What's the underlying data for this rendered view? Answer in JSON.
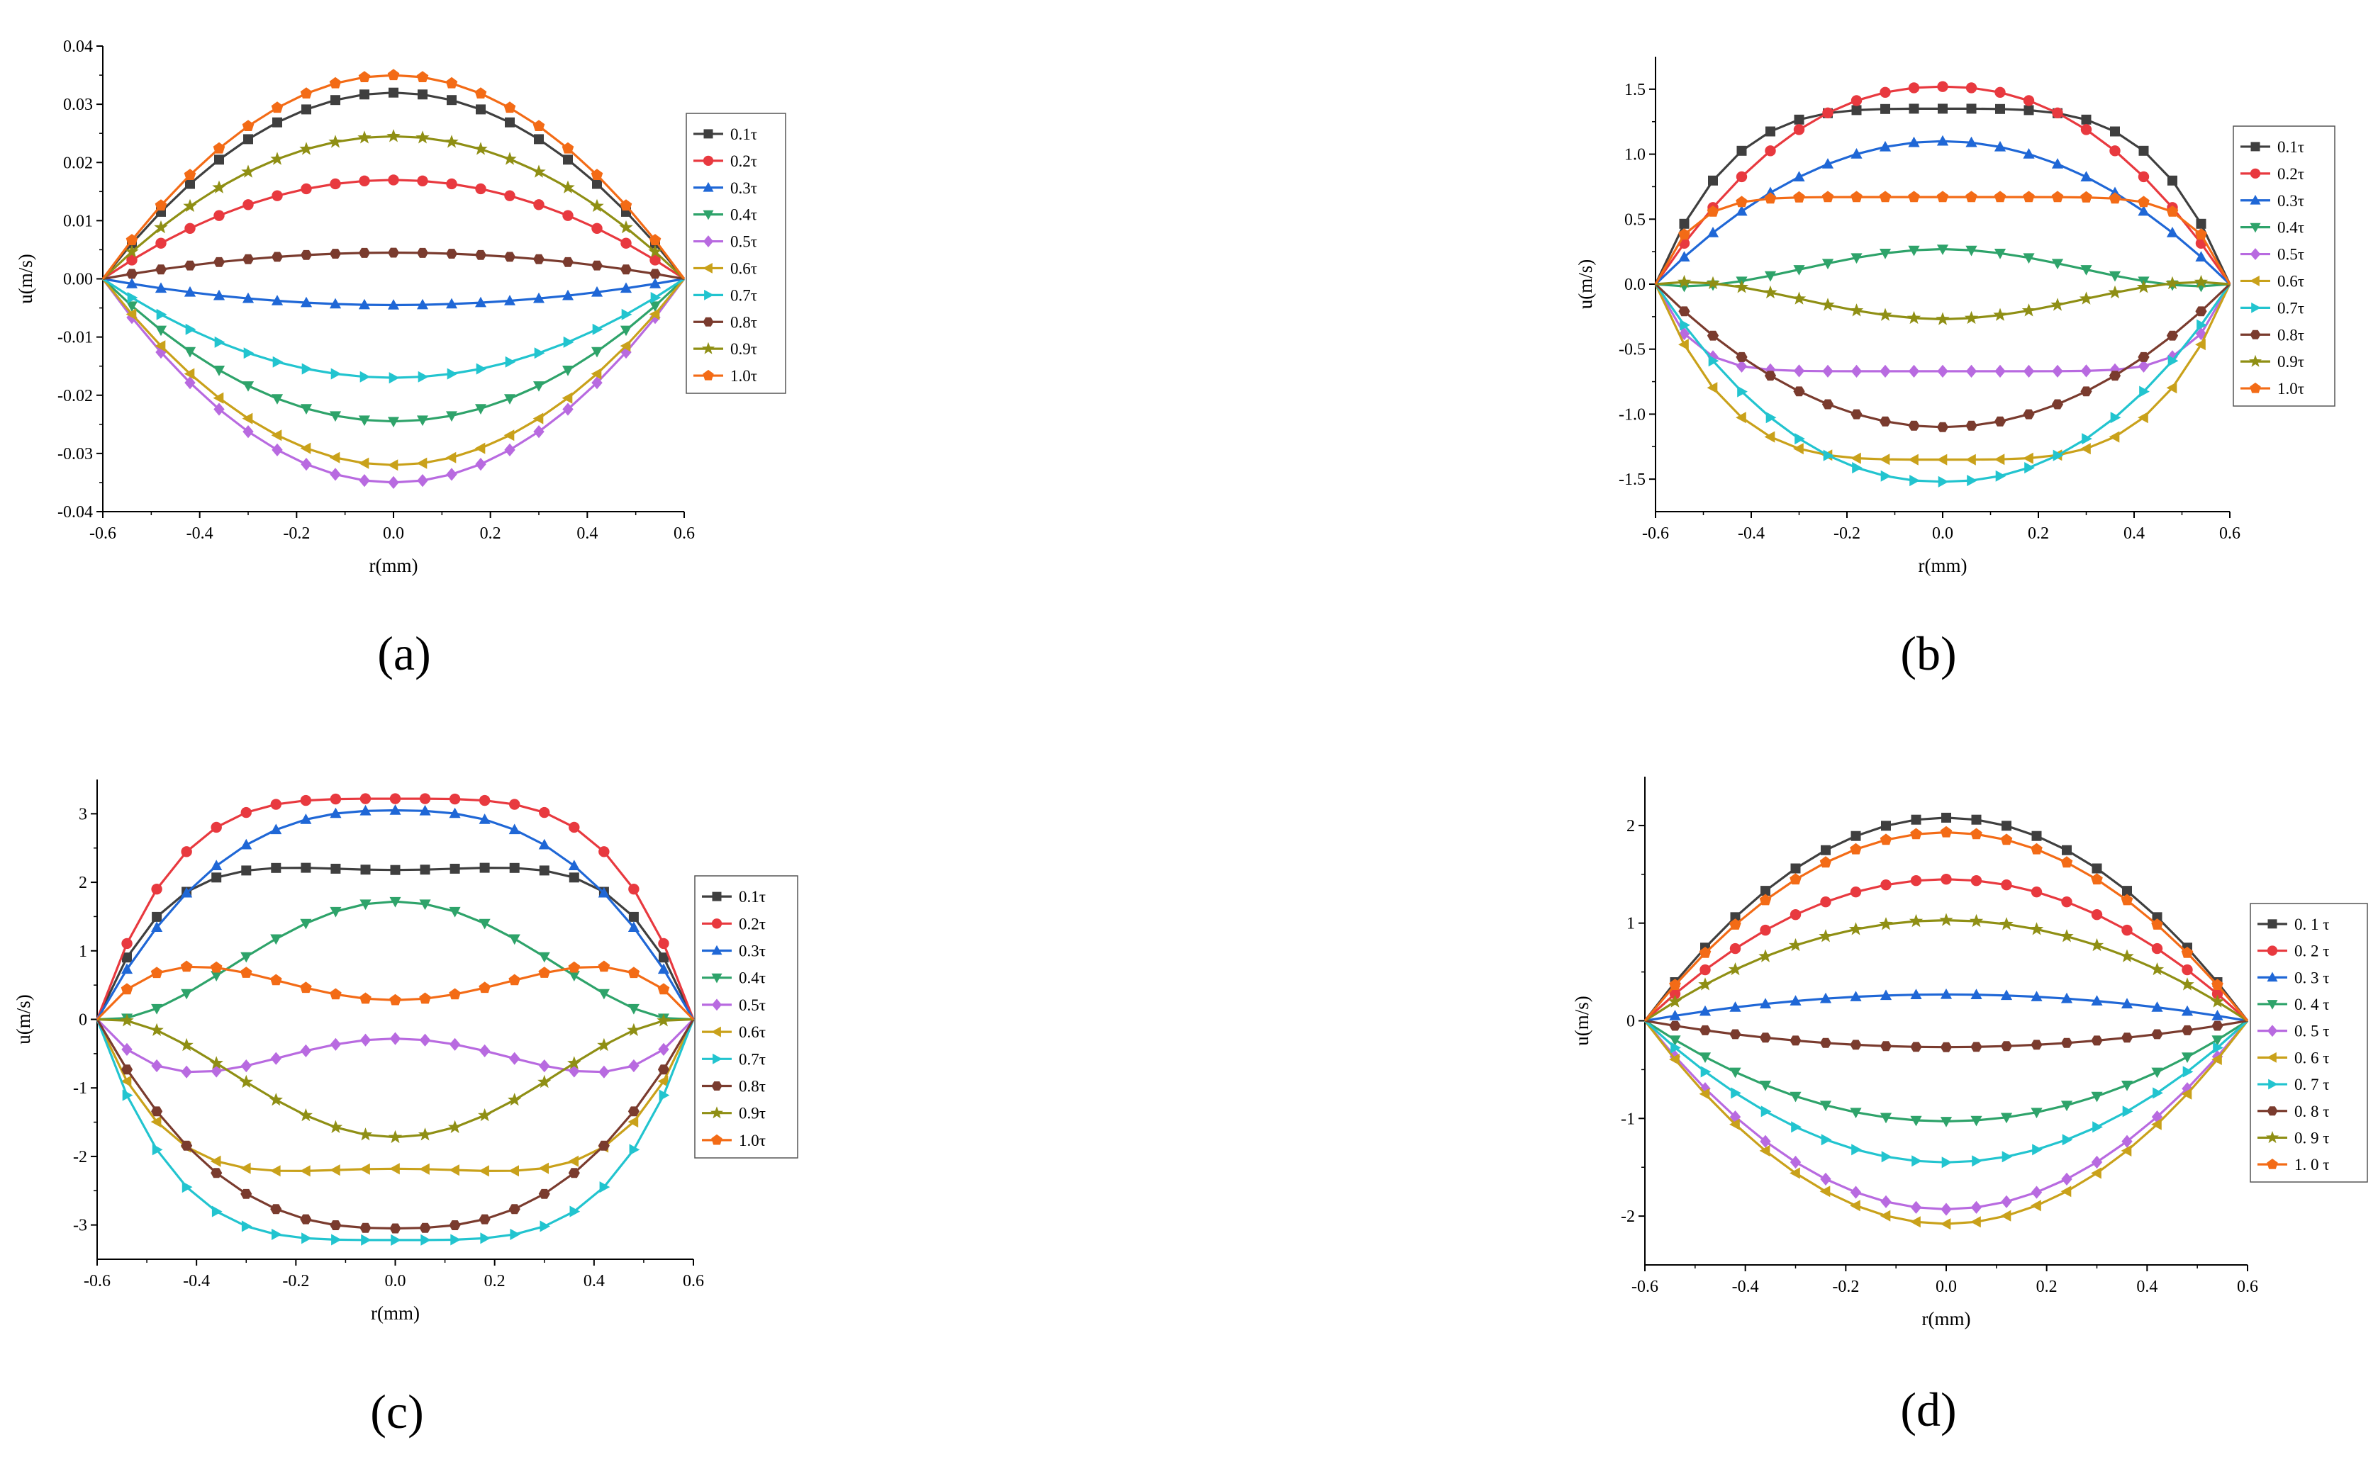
{
  "figure": {
    "panels": [
      "(a)",
      "(b)",
      "(c)",
      "(d)"
    ]
  },
  "chart_data": [
    {
      "panel": "a",
      "panel_label": "(a)",
      "type": "line",
      "xlabel": "r(mm)",
      "ylabel": "u(m/s)",
      "xlim": [
        -0.6,
        0.6
      ],
      "ylim": [
        -0.04,
        0.04
      ],
      "xticks": [
        "-0.6",
        "-0.4",
        "-0.2",
        "0.0",
        "0.2",
        "0.4",
        "0.6"
      ],
      "yticks": [
        "-0.04",
        "-0.03",
        "-0.02",
        "-0.01",
        "0.00",
        "0.01",
        "0.02",
        "0.03",
        "0.04"
      ],
      "ytick_values": [
        -0.04,
        -0.03,
        -0.02,
        -0.01,
        0,
        0.01,
        0.02,
        0.03,
        0.04
      ],
      "legend": "right",
      "series": [
        {
          "name": "0.1τ",
          "color": "#3f3f3f",
          "marker": "square",
          "model": "parabola",
          "amp": 0.032
        },
        {
          "name": "0.2τ",
          "color": "#e8393f",
          "marker": "circle",
          "model": "parabola",
          "amp": 0.017
        },
        {
          "name": "0.3τ",
          "color": "#1f67d6",
          "marker": "triangle-up",
          "model": "parabola",
          "amp": -0.0045
        },
        {
          "name": "0.4τ",
          "color": "#2ea36a",
          "marker": "triangle-down",
          "model": "parabola",
          "amp": -0.0245
        },
        {
          "name": "0.5τ",
          "color": "#b86ae0",
          "marker": "diamond",
          "model": "parabola",
          "amp": -0.035
        },
        {
          "name": "0.6τ",
          "color": "#c9a11a",
          "marker": "triangle-left",
          "model": "parabola",
          "amp": -0.032
        },
        {
          "name": "0.7τ",
          "color": "#22c4cf",
          "marker": "triangle-right",
          "model": "parabola",
          "amp": -0.017
        },
        {
          "name": "0.8τ",
          "color": "#7a3b2e",
          "marker": "hexagon",
          "model": "parabola",
          "amp": 0.0045
        },
        {
          "name": "0.9τ",
          "color": "#8f8f14",
          "marker": "star",
          "model": "parabola",
          "amp": 0.0245
        },
        {
          "name": "1.0τ",
          "color": "#f36b16",
          "marker": "pentagon",
          "model": "parabola",
          "amp": 0.035
        }
      ]
    },
    {
      "panel": "b",
      "panel_label": "(b)",
      "type": "line",
      "xlabel": "r(mm)",
      "ylabel": "u(m/s)",
      "xlim": [
        -0.6,
        0.6
      ],
      "ylim": [
        -1.75,
        1.75
      ],
      "xticks": [
        "-0.6",
        "-0.4",
        "-0.2",
        "0.0",
        "0.2",
        "0.4",
        "0.6"
      ],
      "yticks": [
        "-1.5",
        "-1.0",
        "-0.5",
        "0.0",
        "0.5",
        "1.0",
        "1.5"
      ],
      "ytick_values": [
        -1.5,
        -1.0,
        -0.5,
        0,
        0.5,
        1.0,
        1.5
      ],
      "legend": "right",
      "series": [
        {
          "name": "0.1τ",
          "color": "#3f3f3f",
          "marker": "square",
          "model": "womersley",
          "a": 1.35,
          "b": 0,
          "n": 4
        },
        {
          "name": "0.2τ",
          "color": "#e8393f",
          "marker": "circle",
          "model": "womersley",
          "a": 1.52,
          "b": 0,
          "n": 2.2
        },
        {
          "name": "0.3τ",
          "color": "#1f67d6",
          "marker": "triangle-up",
          "model": "womersley",
          "a": 1.1,
          "b": 0,
          "n": 2.0
        },
        {
          "name": "0.4τ",
          "color": "#2ea36a",
          "marker": "triangle-down",
          "model": "womersley",
          "a": 0.27,
          "b": -0.45,
          "n": 1.8
        },
        {
          "name": "0.5τ",
          "color": "#b86ae0",
          "marker": "diamond",
          "model": "womersley",
          "a": -0.67,
          "b": 0,
          "n": 8
        },
        {
          "name": "0.6τ",
          "color": "#c9a11a",
          "marker": "triangle-left",
          "model": "womersley",
          "a": -1.35,
          "b": 0,
          "n": 4
        },
        {
          "name": "0.7τ",
          "color": "#22c4cf",
          "marker": "triangle-right",
          "model": "womersley",
          "a": -1.52,
          "b": 0,
          "n": 2.2
        },
        {
          "name": "0.8τ",
          "color": "#7a3b2e",
          "marker": "hexagon",
          "model": "womersley",
          "a": -1.1,
          "b": 0,
          "n": 2.0
        },
        {
          "name": "0.9τ",
          "color": "#8f8f14",
          "marker": "star",
          "model": "womersley",
          "a": -0.27,
          "b": 0.45,
          "n": 1.8
        },
        {
          "name": "1.0τ",
          "color": "#f36b16",
          "marker": "pentagon",
          "model": "womersley",
          "a": 0.67,
          "b": 0,
          "n": 8
        }
      ]
    },
    {
      "panel": "c",
      "panel_label": "(c)",
      "type": "line",
      "xlabel": "r(mm)",
      "ylabel": "u(m/s)",
      "xlim": [
        -0.6,
        0.6
      ],
      "ylim": [
        -3.5,
        3.5
      ],
      "xticks": [
        "-0.6",
        "-0.4",
        "-0.2",
        "0.0",
        "0.2",
        "0.4",
        "0.6"
      ],
      "yticks": [
        "-3",
        "-2",
        "-1",
        "0",
        "1",
        "2",
        "3"
      ],
      "ytick_values": [
        -3,
        -2,
        -1,
        0,
        1,
        2,
        3
      ],
      "legend": "right",
      "series": [
        {
          "name": "0.1τ",
          "color": "#3f3f3f",
          "marker": "square",
          "model": "womersley",
          "a": 2.18,
          "b": 0.55,
          "n": 4
        },
        {
          "name": "0.2τ",
          "color": "#e8393f",
          "marker": "circle",
          "model": "womersley",
          "a": 3.22,
          "b": 0,
          "n": 4
        },
        {
          "name": "0.3τ",
          "color": "#1f67d6",
          "marker": "triangle-up",
          "model": "womersley",
          "a": 3.05,
          "b": 0,
          "n": 2.6
        },
        {
          "name": "0.4τ",
          "color": "#2ea36a",
          "marker": "triangle-down",
          "model": "womersley",
          "a": 1.72,
          "b": -2.0,
          "n": 2.0
        },
        {
          "name": "0.5τ",
          "color": "#b86ae0",
          "marker": "diamond",
          "model": "womersley",
          "a": -0.28,
          "b": -2.5,
          "n": 2.0
        },
        {
          "name": "0.6τ",
          "color": "#c9a11a",
          "marker": "triangle-left",
          "model": "womersley",
          "a": -2.18,
          "b": -0.55,
          "n": 4
        },
        {
          "name": "0.7τ",
          "color": "#22c4cf",
          "marker": "triangle-right",
          "model": "womersley",
          "a": -3.22,
          "b": 0,
          "n": 4
        },
        {
          "name": "0.8τ",
          "color": "#7a3b2e",
          "marker": "hexagon",
          "model": "womersley",
          "a": -3.05,
          "b": 0,
          "n": 2.6
        },
        {
          "name": "0.9τ",
          "color": "#8f8f14",
          "marker": "star",
          "model": "womersley",
          "a": -1.72,
          "b": 2.0,
          "n": 2.0
        },
        {
          "name": "1.0τ",
          "color": "#f36b16",
          "marker": "pentagon",
          "model": "womersley",
          "a": 0.28,
          "b": 2.5,
          "n": 2.0
        }
      ]
    },
    {
      "panel": "d",
      "panel_label": "(d)",
      "type": "line",
      "xlabel": "r(mm)",
      "ylabel": "u(m/s)",
      "xlim": [
        -0.6,
        0.6
      ],
      "ylim": [
        -2.5,
        2.5
      ],
      "xticks": [
        "-0.6",
        "-0.4",
        "-0.2",
        "0.0",
        "0.2",
        "0.4",
        "0.6"
      ],
      "yticks": [
        "-2",
        "-1",
        "0",
        "1",
        "2"
      ],
      "ytick_values": [
        -2,
        -1,
        0,
        1,
        2
      ],
      "legend": "right",
      "series": [
        {
          "name": "0. 1 τ",
          "color": "#3f3f3f",
          "marker": "square",
          "model": "parabola",
          "amp": 2.08
        },
        {
          "name": "0. 2 τ",
          "color": "#e8393f",
          "marker": "circle",
          "model": "parabola",
          "amp": 1.45
        },
        {
          "name": "0. 3 τ",
          "color": "#1f67d6",
          "marker": "triangle-up",
          "model": "parabola",
          "amp": 0.27
        },
        {
          "name": "0. 4 τ",
          "color": "#2ea36a",
          "marker": "triangle-down",
          "model": "parabola",
          "amp": -1.03
        },
        {
          "name": "0. 5 τ",
          "color": "#b86ae0",
          "marker": "diamond",
          "model": "parabola",
          "amp": -1.93
        },
        {
          "name": "0. 6 τ",
          "color": "#c9a11a",
          "marker": "triangle-left",
          "model": "parabola",
          "amp": -2.08
        },
        {
          "name": "0. 7 τ",
          "color": "#22c4cf",
          "marker": "triangle-right",
          "model": "parabola",
          "amp": -1.45
        },
        {
          "name": "0. 8 τ",
          "color": "#7a3b2e",
          "marker": "hexagon",
          "model": "parabola",
          "amp": -0.27
        },
        {
          "name": "0. 9 τ",
          "color": "#8f8f14",
          "marker": "star",
          "model": "parabola",
          "amp": 1.03
        },
        {
          "name": "1. 0 τ",
          "color": "#f36b16",
          "marker": "pentagon",
          "model": "parabola",
          "amp": 1.93
        }
      ]
    }
  ]
}
